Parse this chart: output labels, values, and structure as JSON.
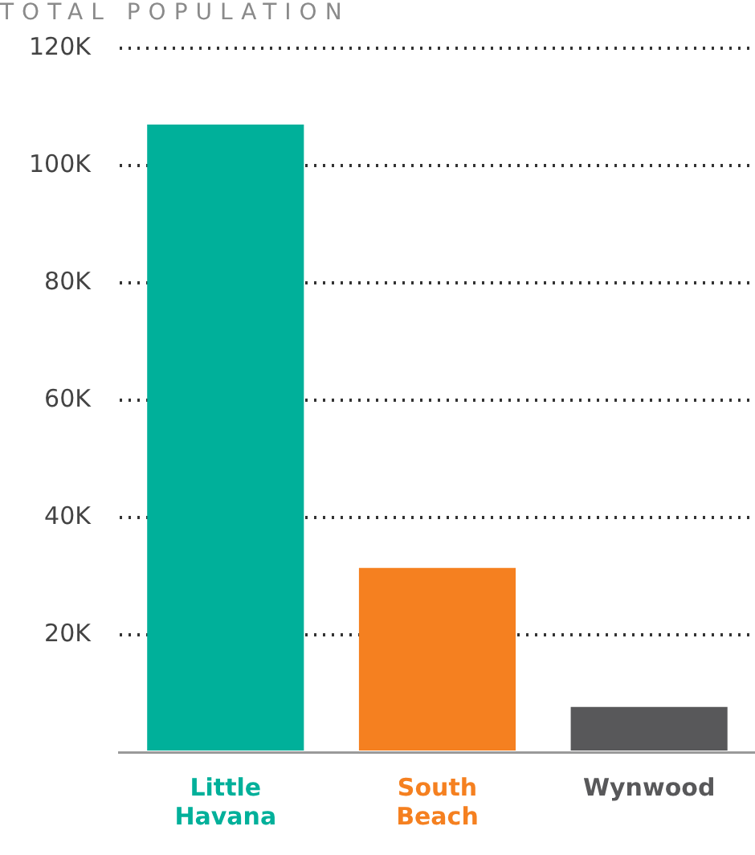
{
  "chart_data": {
    "type": "bar",
    "title": "TOTAL POPULATION",
    "categories": [
      "Little Havana",
      "South Beach",
      "Wynwood"
    ],
    "values": [
      107000,
      31400,
      7700
    ],
    "colors": [
      "#00b09a",
      "#f58020",
      "#58585a"
    ],
    "ylim": [
      0,
      120000
    ],
    "yticks": [
      {
        "value": 0,
        "label": null
      },
      {
        "value": 20000,
        "label": "20K"
      },
      {
        "value": 40000,
        "label": "40K"
      },
      {
        "value": 60000,
        "label": "60K"
      },
      {
        "value": 80000,
        "label": "80K"
      },
      {
        "value": 100000,
        "label": "100K"
      },
      {
        "value": 120000,
        "label": "120K"
      }
    ],
    "grid": "y",
    "legend": false
  }
}
